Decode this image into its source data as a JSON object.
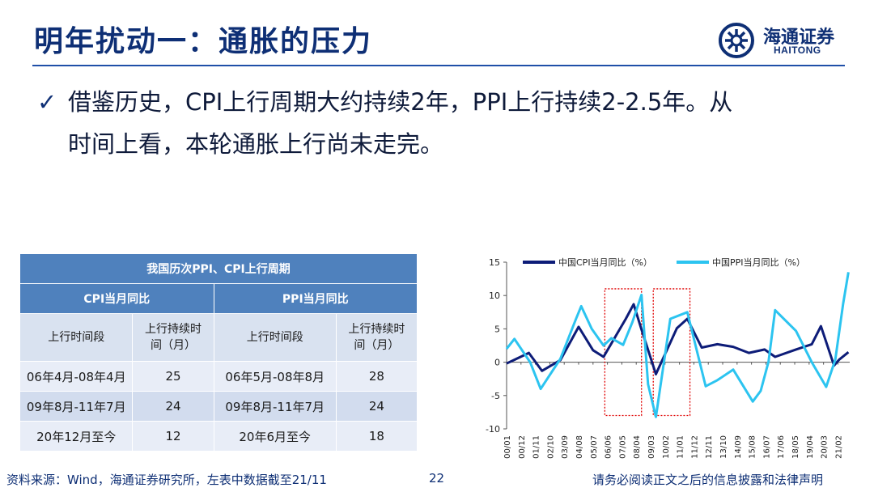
{
  "header": {
    "title": "明年扰动一：通胀的压力"
  },
  "logo": {
    "cn": "海通证券",
    "en": "HAITONG"
  },
  "bullet": {
    "check": "✓",
    "line1": "借鉴历史，CPI上行周期大约持续2年，PPI上行持续2-2.5年。从",
    "line2": "时间上看，本轮通胀上行尚未走完。"
  },
  "table": {
    "title": "我国历次PPI、CPI上行周期",
    "group_cpi": "CPI当月同比",
    "group_ppi": "PPI当月同比",
    "col_period": "上行时间段",
    "col_duration_1": "上行持续时",
    "col_duration_2": "间（月）",
    "rows": [
      {
        "cpi_period": "06年4月-08年4月",
        "cpi_months": "25",
        "ppi_period": "06年5月-08年8月",
        "ppi_months": "28"
      },
      {
        "cpi_period": "09年8月-11年7月",
        "cpi_months": "24",
        "ppi_period": "09年8月-11年7月",
        "ppi_months": "24"
      },
      {
        "cpi_period": "20年12月至今",
        "cpi_months": "12",
        "ppi_period": "20年6月至今",
        "ppi_months": "18"
      }
    ]
  },
  "chart_data": {
    "type": "line",
    "ylim": [
      -10,
      15
    ],
    "yticks": [
      "15",
      "10",
      "5",
      "0",
      "-5",
      "-10"
    ],
    "xticks": [
      "00/01",
      "00/12",
      "01/11",
      "02/10",
      "03/09",
      "04/08",
      "05/07",
      "06/06",
      "07/05",
      "08/04",
      "09/03",
      "10/02",
      "11/01",
      "11/12",
      "12/11",
      "13/10",
      "14/09",
      "15/08",
      "16/07",
      "17/06",
      "18/05",
      "19/04",
      "20/03",
      "21/02"
    ],
    "legend_position": "top",
    "highlight_boxes_label": "red dotted boxes mark 06-08 and 09-11 upcycles",
    "series": [
      {
        "name": "中国CPI当月同比（%）",
        "color": "#0d1c78",
        "x": [
          "00/01",
          "01/06",
          "02/04",
          "03/06",
          "04/08",
          "05/07",
          "06/03",
          "07/08",
          "08/02",
          "08/08",
          "09/07",
          "10/11",
          "11/07",
          "12/06",
          "13/06",
          "14/06",
          "15/06",
          "16/06",
          "17/02",
          "18/06",
          "19/06",
          "20/01",
          "20/11",
          "21/03",
          "21/10"
        ],
        "values": [
          -0.2,
          1.4,
          -1.3,
          0.3,
          5.3,
          1.8,
          0.8,
          6.5,
          8.7,
          4.9,
          -1.8,
          5.1,
          6.5,
          2.2,
          2.7,
          2.3,
          1.4,
          1.9,
          0.8,
          1.9,
          2.7,
          5.4,
          -0.5,
          0.4,
          1.5
        ]
      },
      {
        "name": "中国PPI当月同比（%）",
        "color": "#2cc4f0",
        "x": [
          "00/01",
          "00/07",
          "01/07",
          "02/03",
          "03/06",
          "04/06",
          "04/10",
          "05/06",
          "06/03",
          "06/09",
          "07/06",
          "08/01",
          "08/08",
          "09/01",
          "09/07",
          "10/06",
          "11/07",
          "12/09",
          "13/06",
          "14/06",
          "15/09",
          "16/03",
          "16/09",
          "17/02",
          "18/06",
          "19/06",
          "20/05",
          "20/12",
          "21/06",
          "21/10"
        ],
        "values": [
          2.0,
          3.5,
          0.0,
          -4.0,
          0.5,
          6.5,
          8.4,
          5.0,
          2.5,
          3.6,
          2.6,
          6.0,
          10.1,
          -3.3,
          -8.2,
          6.5,
          7.5,
          -3.6,
          -2.7,
          -1.1,
          -5.9,
          -4.3,
          0.1,
          7.8,
          4.7,
          0.0,
          -3.7,
          0.4,
          8.8,
          13.5
        ]
      }
    ]
  },
  "footer": {
    "source": "资料来源：Wind，海通证券研究所，左表中数据截至21/11",
    "page": "22",
    "note": "请务必阅读正文之后的信息披露和法律声明"
  }
}
